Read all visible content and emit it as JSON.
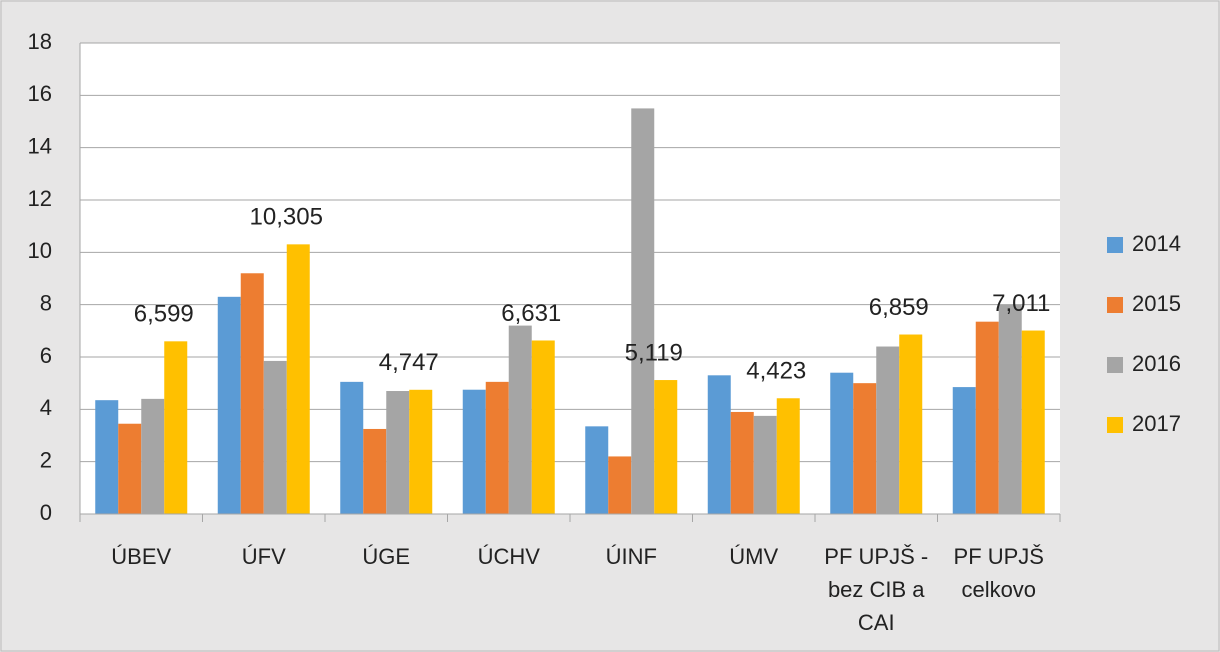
{
  "chart_data": {
    "type": "bar",
    "categories": [
      "ÚBEV",
      "ÚFV",
      "ÚGE",
      "ÚCHV",
      "ÚINF",
      "ÚMV",
      "PF UPJŠ - bez CIB a CAI",
      "PF UPJŠ celkovo"
    ],
    "series": [
      {
        "name": "2014",
        "color": "#5b9bd5",
        "values": [
          4.35,
          8.3,
          5.05,
          4.75,
          3.35,
          5.3,
          5.4,
          4.85
        ]
      },
      {
        "name": "2015",
        "color": "#ed7d31",
        "values": [
          3.45,
          9.2,
          3.25,
          5.05,
          2.2,
          3.9,
          5.0,
          7.35
        ]
      },
      {
        "name": "2016",
        "color": "#a5a5a5",
        "values": [
          4.4,
          5.85,
          4.7,
          7.2,
          15.5,
          3.75,
          6.4,
          8.0
        ]
      },
      {
        "name": "2017",
        "color": "#ffc000",
        "values": [
          6.599,
          10.305,
          4.747,
          6.631,
          5.119,
          4.423,
          6.859,
          7.011
        ],
        "value_labels": [
          "6,599",
          "10,305",
          "4,747",
          "6,631",
          "5,119",
          "4,423",
          "6,859",
          "7,011"
        ]
      }
    ],
    "ylim": [
      0,
      18
    ],
    "yticks": [
      0,
      2,
      4,
      6,
      8,
      10,
      12,
      14,
      16,
      18
    ],
    "grid": true,
    "legend": "right"
  }
}
